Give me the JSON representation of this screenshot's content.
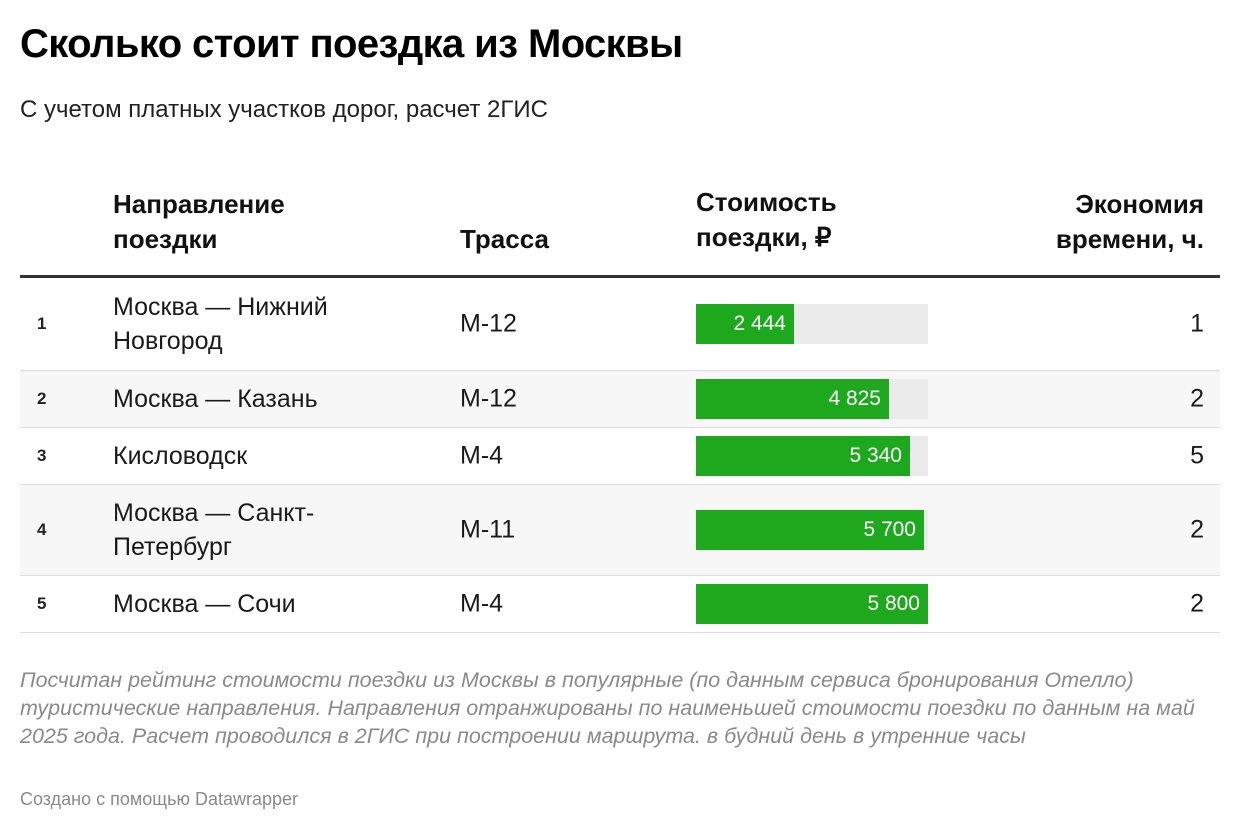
{
  "title": "Сколько стоит поездка из Москвы",
  "subtitle": "С учетом платных участков дорог, расчет 2ГИС",
  "columns": {
    "direction": "Направление поездки",
    "road": "Трасса",
    "cost": "Стоимость поездки, ₽",
    "saving": "Экономия времени, ч."
  },
  "chart_data": {
    "type": "table",
    "cost_max": 5800,
    "accent_color": "#1ea81e",
    "track_color": "#ebebeb",
    "rows": [
      {
        "rank": "1",
        "direction": "Москва — Нижний Новгород",
        "road": "М-12",
        "cost": 2444,
        "cost_label": "2 444",
        "saving": "1"
      },
      {
        "rank": "2",
        "direction": "Москва — Казань",
        "road": "М-12",
        "cost": 4825,
        "cost_label": "4 825",
        "saving": "2"
      },
      {
        "rank": "3",
        "direction": "Кисловодск",
        "road": "М-4",
        "cost": 5340,
        "cost_label": "5 340",
        "saving": "5"
      },
      {
        "rank": "4",
        "direction": "Москва — Санкт-Петербург",
        "road": "М-11",
        "cost": 5700,
        "cost_label": "5 700",
        "saving": "2"
      },
      {
        "rank": "5",
        "direction": "Москва — Сочи",
        "road": "М-4",
        "cost": 5800,
        "cost_label": "5 800",
        "saving": "2"
      }
    ]
  },
  "notes": "Посчитан рейтинг стоимости поездки из Москвы в популярные (по данным сервиса бронирования Отелло) туристические направления. Направления отранжированы по наименьшей стоимости поездки по данным на май 2025 года. Расчет проводился в 2ГИС при построении маршрута. в будний день в утренние часы",
  "credit": "Создано с помощью Datawrapper"
}
